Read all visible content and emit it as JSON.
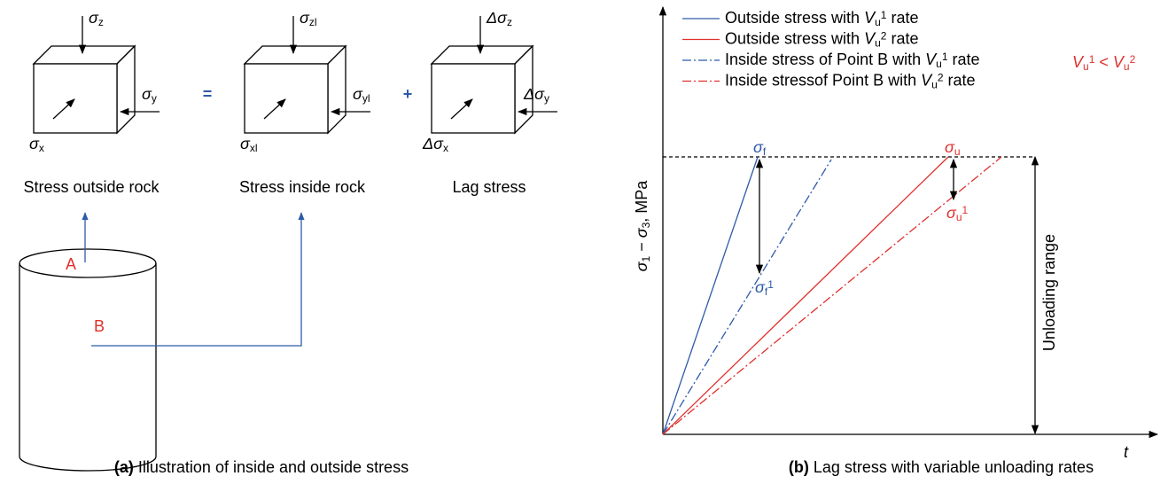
{
  "panel_a": {
    "cubes": [
      {
        "z": {
          "symbol": "σ",
          "sub": "z"
        },
        "y": {
          "symbol": "σ",
          "sub": "y"
        },
        "x": {
          "symbol": "σ",
          "sub": "x"
        },
        "caption": "Stress outside rock"
      },
      {
        "z": {
          "symbol": "σ",
          "sub": "zl"
        },
        "y": {
          "symbol": "σ",
          "sub": "yl"
        },
        "x": {
          "symbol": "σ",
          "sub": "xl"
        },
        "caption": "Stress inside rock"
      },
      {
        "z": {
          "symbol": "Δσ",
          "sub": "z"
        },
        "y": {
          "symbol": "Δσ",
          "sub": "y"
        },
        "x": {
          "symbol": "Δσ",
          "sub": "x"
        },
        "caption": "Lag stress"
      }
    ],
    "operators": [
      "=",
      "+"
    ],
    "points": [
      "A",
      "B"
    ],
    "caption": {
      "label": "(a)",
      "text": " Illustration of inside and outside stress"
    }
  },
  "panel_b": {
    "legend": [
      {
        "pre": "Outside stress with ",
        "var": "V",
        "sub": "u",
        "sup": "1",
        "post": " rate"
      },
      {
        "pre": "Outside stress with ",
        "var": "V",
        "sub": "u",
        "sup": "2",
        "post": " rate"
      },
      {
        "pre": "Inside stress of Point B with ",
        "var": "V",
        "sub": "u",
        "sup": "1",
        "post": " rate"
      },
      {
        "pre": "Inside stressof Point B with ",
        "var": "V",
        "sub": "u",
        "sup": "2",
        "post": " rate"
      }
    ],
    "condition": {
      "left": {
        "var": "V",
        "sub": "u",
        "sup": "1"
      },
      "op": " < ",
      "right": {
        "var": "V",
        "sub": "u",
        "sup": "2"
      }
    },
    "labels": {
      "sigma_f": {
        "symbol": "σ",
        "sub": "f"
      },
      "sigma_f1": {
        "symbol": "σ",
        "sub": "f",
        "sup": "1"
      },
      "sigma_u": {
        "symbol": "σ",
        "sub": "u"
      },
      "sigma_u1": {
        "symbol": "σ",
        "sub": "u",
        "sup": "1"
      }
    },
    "y_label": {
      "s1": "σ",
      "sub1": "1",
      "minus": " − ",
      "s2": "σ",
      "sub2": "3",
      "unit": ", MPa"
    },
    "x_label": "t",
    "range_label": "Unloading range",
    "caption": {
      "label": "(b)",
      "text": " Lag stress with variable unloading rates"
    }
  }
}
